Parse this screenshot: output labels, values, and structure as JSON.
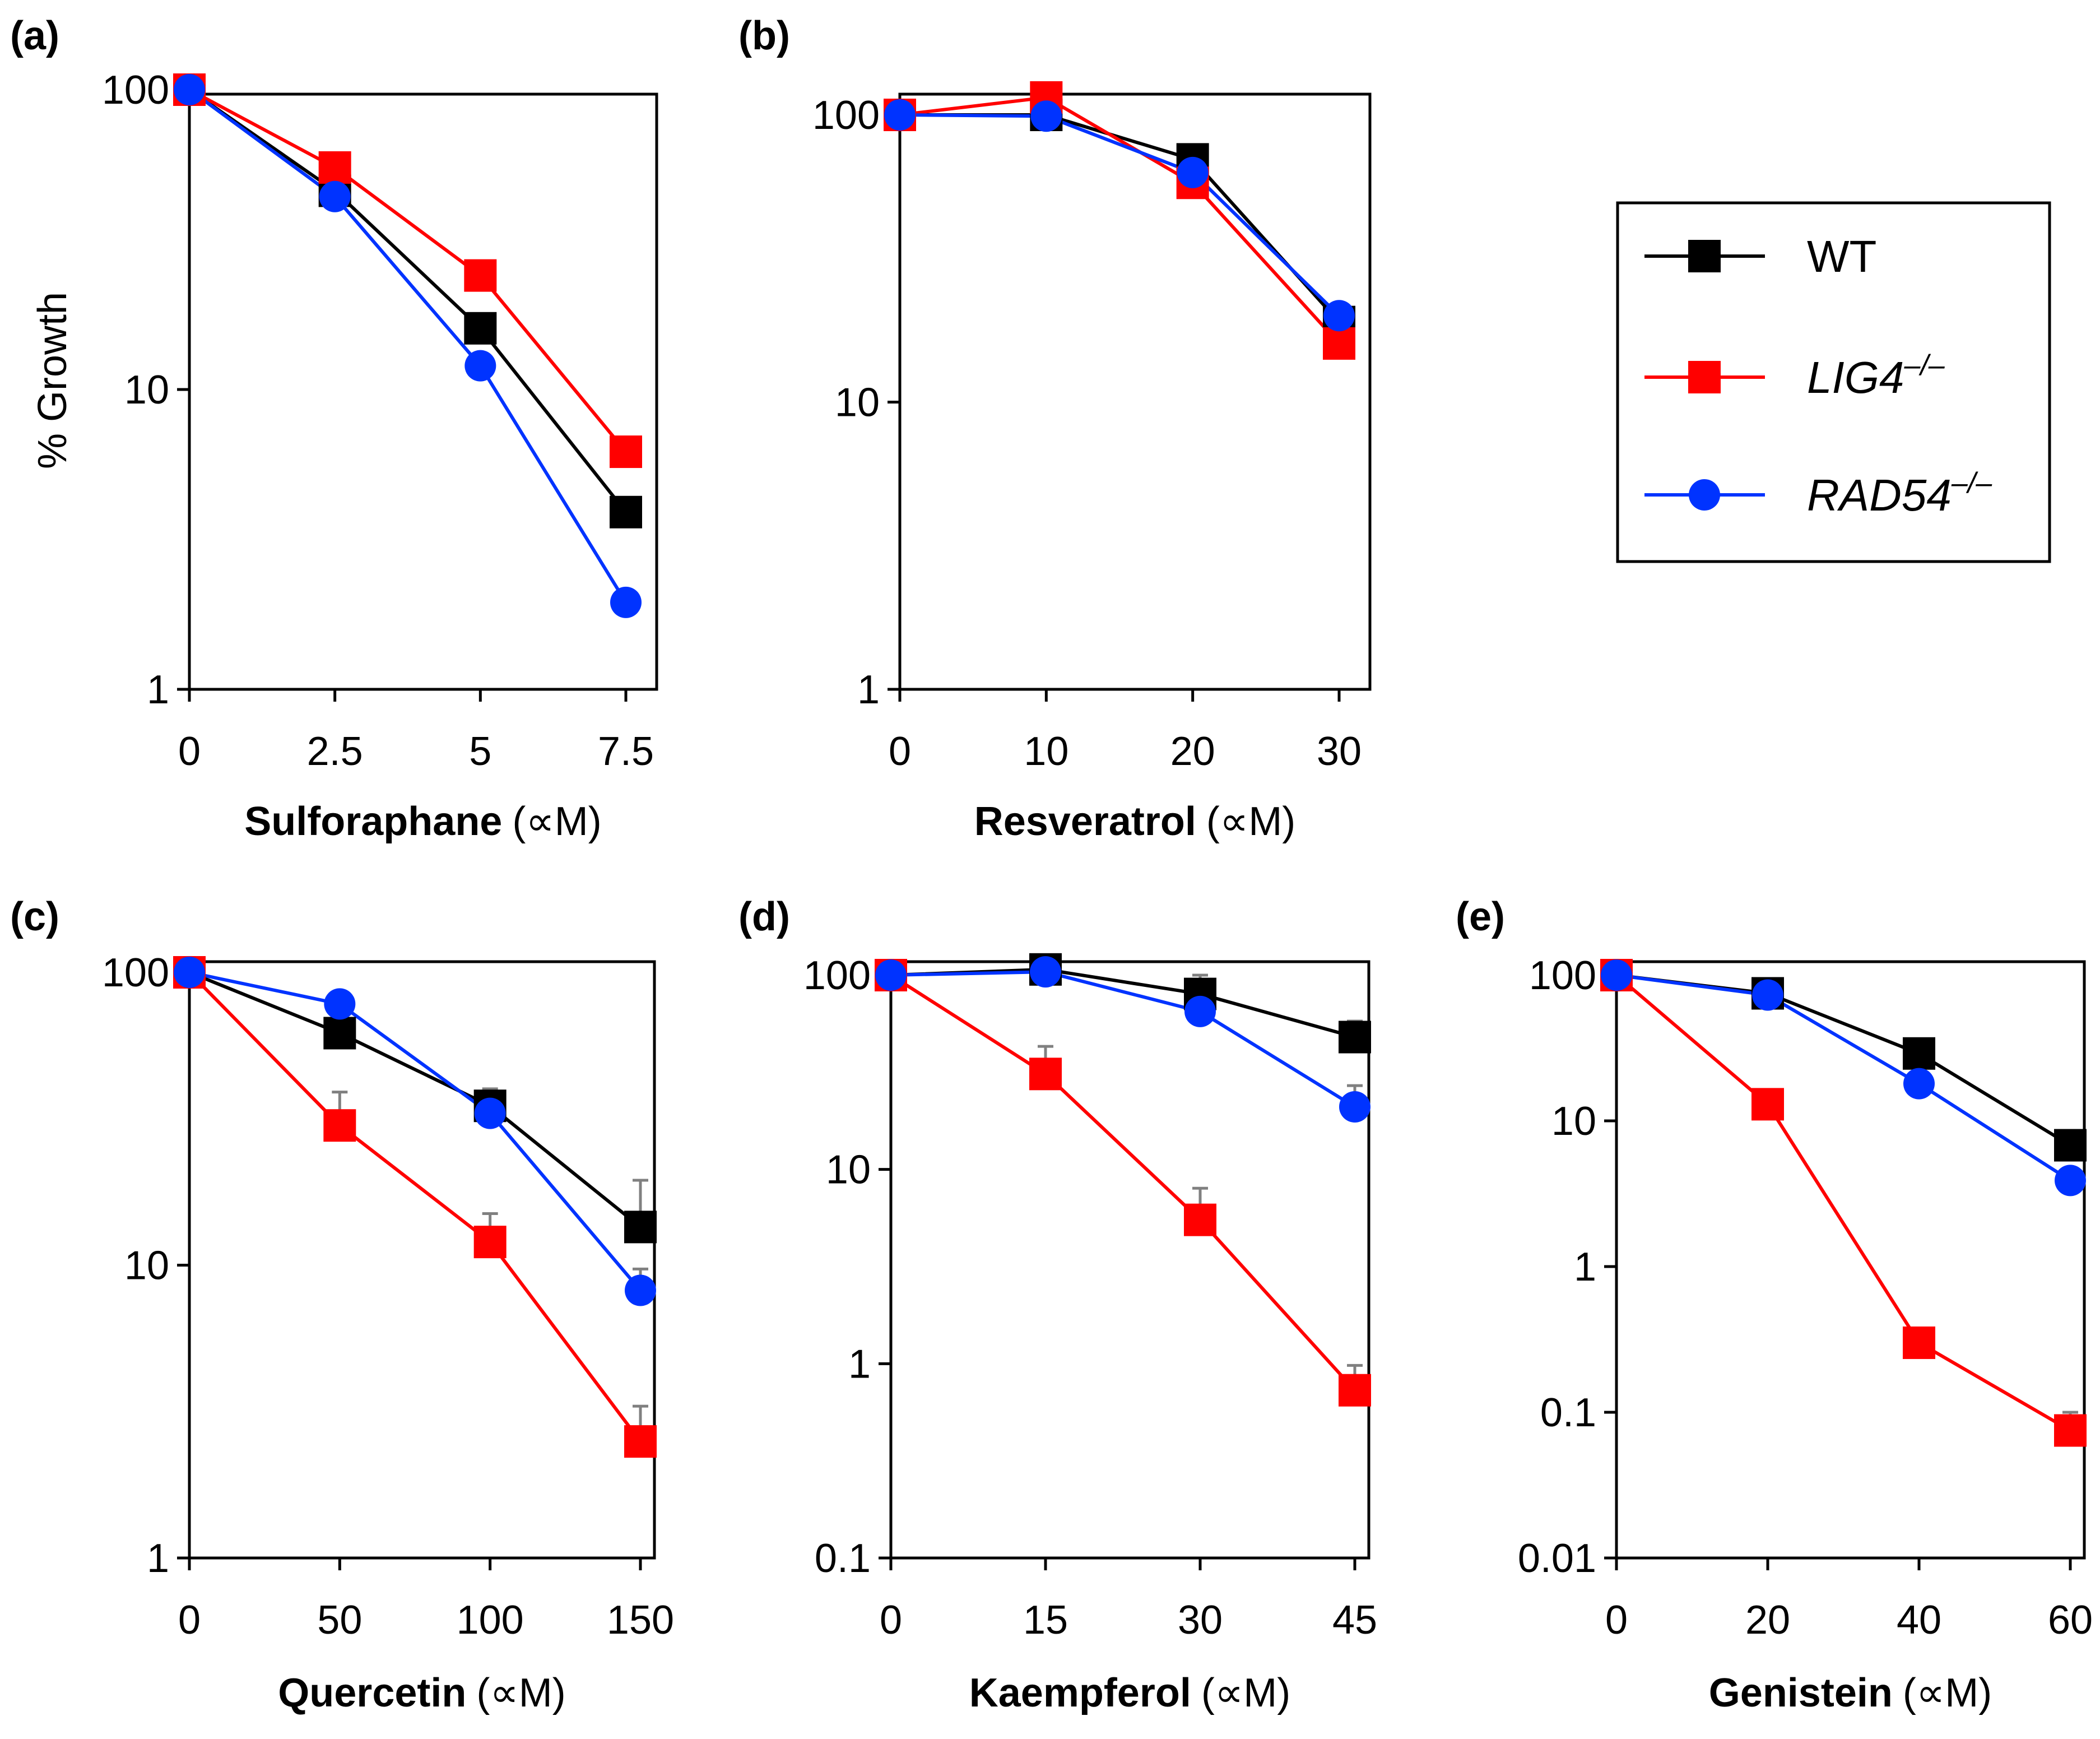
{
  "colors": {
    "WT": "#000000",
    "LIG4": "#ff0000",
    "RAD54": "#0033ff",
    "errorbar": "#808080"
  },
  "legend": {
    "entries": [
      {
        "key": "WT",
        "label": "WT",
        "italic": false,
        "superscript": "",
        "marker": "square"
      },
      {
        "key": "LIG4",
        "label": "LIG4",
        "italic": true,
        "superscript": "–/–",
        "marker": "square"
      },
      {
        "key": "RAD54",
        "label": "RAD54",
        "italic": true,
        "superscript": "–/–",
        "marker": "circle"
      }
    ]
  },
  "chart_data": [
    {
      "panel": "(a)",
      "type": "line",
      "title": "",
      "xlabel_bold": "Sulforaphane",
      "xlabel_unit": "(∝M)",
      "ylabel": "% Growth",
      "yscale": "log",
      "ylim": [
        1,
        100
      ],
      "yticks": [
        1,
        10,
        100
      ],
      "ytick_labels": [
        "1",
        "10",
        "100"
      ],
      "x": [
        0,
        2.5,
        5,
        7.5
      ],
      "xtick_labels": [
        "0",
        "2.5",
        "5",
        "7.5"
      ],
      "series": [
        {
          "name": "WT",
          "values": [
            100,
            46,
            16,
            3.9
          ]
        },
        {
          "name": "LIG4",
          "values": [
            100,
            55,
            24,
            6.2
          ]
        },
        {
          "name": "RAD54",
          "values": [
            100,
            44,
            12,
            1.95
          ]
        }
      ]
    },
    {
      "panel": "(b)",
      "type": "line",
      "title": "",
      "xlabel_bold": "Resveratrol",
      "xlabel_unit": "(∝M)",
      "ylabel": "",
      "yscale": "log",
      "ylim": [
        1,
        120
      ],
      "yticks": [
        1,
        10,
        100
      ],
      "ytick_labels": [
        "1",
        "10",
        "100"
      ],
      "x": [
        0,
        10,
        20,
        30
      ],
      "xtick_labels": [
        "0",
        "10",
        "20",
        "30"
      ],
      "series": [
        {
          "name": "WT",
          "values": [
            100,
            100,
            70,
            19
          ]
        },
        {
          "name": "LIG4",
          "values": [
            100,
            115,
            58,
            16
          ]
        },
        {
          "name": "RAD54",
          "values": [
            100,
            99,
            63,
            20
          ]
        }
      ]
    },
    {
      "panel": "(c)",
      "type": "line",
      "title": "",
      "xlabel_bold": "Quercetin",
      "xlabel_unit": "(∝M)",
      "ylabel": "",
      "yscale": "log",
      "ylim": [
        1,
        100
      ],
      "yticks": [
        1,
        10,
        100
      ],
      "ytick_labels": [
        "1",
        "10",
        "100"
      ],
      "x": [
        0,
        50,
        100,
        150
      ],
      "xtick_labels": [
        "0",
        "50",
        "100",
        "150"
      ],
      "series": [
        {
          "name": "WT",
          "values": [
            100,
            62,
            35,
            13.5
          ],
          "errors": [
            0,
            0,
            5,
            6
          ]
        },
        {
          "name": "LIG4",
          "values": [
            100,
            30,
            12,
            2.5
          ],
          "errors": [
            0,
            9,
            3,
            0.8
          ]
        },
        {
          "name": "RAD54",
          "values": [
            100,
            78,
            33,
            8.2
          ],
          "errors": [
            0,
            0,
            4,
            1.5
          ]
        }
      ]
    },
    {
      "panel": "(d)",
      "type": "line",
      "title": "",
      "xlabel_bold": "Kaempferol",
      "xlabel_unit": "(∝M)",
      "ylabel": "",
      "yscale": "log",
      "ylim": [
        0.1,
        105
      ],
      "yticks": [
        0.1,
        1,
        10,
        100
      ],
      "ytick_labels": [
        "0.1",
        "1",
        "10",
        "100"
      ],
      "x": [
        0,
        15,
        30,
        45
      ],
      "xtick_labels": [
        "0",
        "15",
        "30",
        "45"
      ],
      "series": [
        {
          "name": "WT",
          "values": [
            100,
            107,
            80,
            48
          ],
          "errors": [
            0,
            0,
            20,
            10
          ]
        },
        {
          "name": "LIG4",
          "values": [
            100,
            31,
            5.5,
            0.73
          ],
          "errors": [
            0,
            12,
            2.5,
            0.25
          ]
        },
        {
          "name": "RAD54",
          "values": [
            100,
            104,
            65,
            21
          ],
          "errors": [
            0,
            0,
            0,
            6
          ]
        }
      ]
    },
    {
      "panel": "(e)",
      "type": "line",
      "title": "",
      "xlabel_bold": "Genistein",
      "xlabel_unit": "(∝M)",
      "ylabel": "",
      "yscale": "log",
      "ylim": [
        0.01,
        120
      ],
      "yticks": [
        0.01,
        0.1,
        1,
        10,
        100
      ],
      "ytick_labels": [
        "0.01",
        "0.1",
        "1",
        "10",
        "100"
      ],
      "x": [
        0,
        20,
        40,
        60
      ],
      "xtick_labels": [
        "0",
        "20",
        "40",
        "60"
      ],
      "series": [
        {
          "name": "WT",
          "values": [
            100,
            75,
            29,
            6.8
          ],
          "errors": [
            0,
            0,
            0,
            0
          ]
        },
        {
          "name": "LIG4",
          "values": [
            100,
            13,
            0.3,
            0.075
          ],
          "errors": [
            0,
            0,
            0,
            0.025
          ]
        },
        {
          "name": "RAD54",
          "values": [
            100,
            73,
            18,
            3.9
          ],
          "errors": [
            0,
            0,
            0,
            0
          ]
        }
      ]
    }
  ]
}
